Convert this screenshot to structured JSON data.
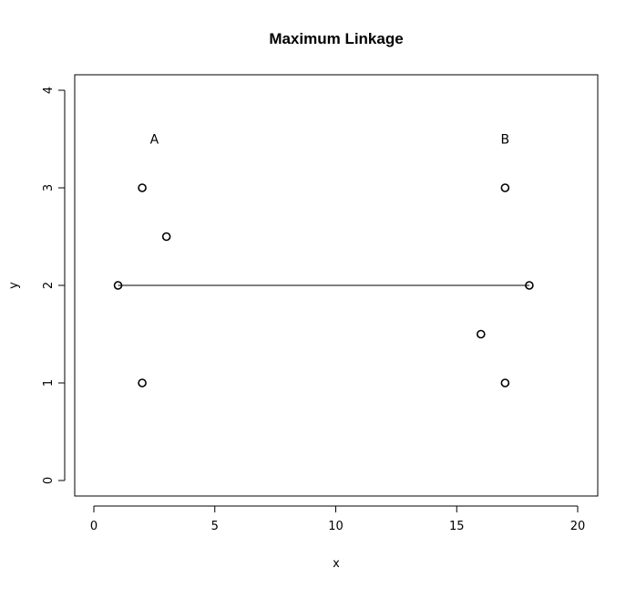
{
  "chart_data": {
    "type": "scatter",
    "title": "Maximum Linkage",
    "xlabel": "x",
    "ylabel": "y",
    "xlim": [
      0,
      20
    ],
    "ylim": [
      0,
      4
    ],
    "xticks": [
      0,
      5,
      10,
      15,
      20
    ],
    "yticks": [
      0,
      1,
      2,
      3,
      4
    ],
    "grid": false,
    "points": [
      {
        "x": 2,
        "y": 3
      },
      {
        "x": 3,
        "y": 2.5
      },
      {
        "x": 1,
        "y": 2
      },
      {
        "x": 2,
        "y": 1
      },
      {
        "x": 17,
        "y": 3
      },
      {
        "x": 18,
        "y": 2
      },
      {
        "x": 16,
        "y": 1.5
      },
      {
        "x": 17,
        "y": 1
      }
    ],
    "segments": [
      {
        "x1": 1,
        "y1": 2,
        "x2": 18,
        "y2": 2
      }
    ],
    "annotations": [
      {
        "text": "A",
        "x": 2.5,
        "y": 3.5
      },
      {
        "text": "B",
        "x": 17,
        "y": 3.5
      }
    ]
  }
}
